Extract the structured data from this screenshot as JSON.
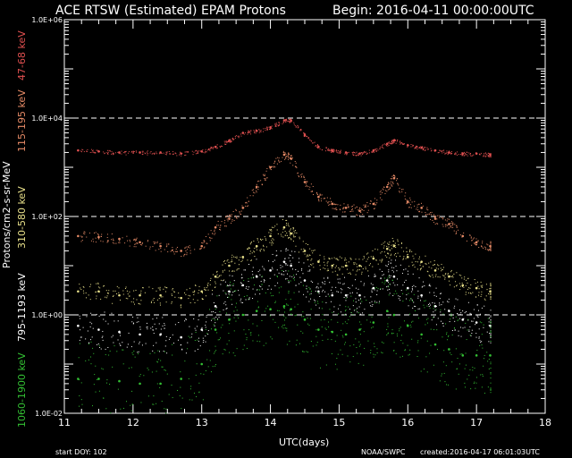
{
  "header": {
    "title": "ACE RTSW (Estimated) EPAM Protons",
    "begin": "Begin: 2016-04-11 00:00:00UTC"
  },
  "footer": {
    "start_doy": "start DOY:  102",
    "credit": "NOAA/SWPC",
    "created": "created:2016-04-17 06:01:03UTC"
  },
  "chart_data": {
    "type": "scatter",
    "title": "ACE RTSW (Estimated) EPAM Protons",
    "xlabel": "UTC(days)",
    "ylabel": "Protons/cm2-s-sr-MeV",
    "xlim": [
      11,
      18
    ],
    "ylim": [
      0.01,
      1000000
    ],
    "y_scale": "log",
    "x_ticks": [
      "11",
      "12",
      "13",
      "14",
      "15",
      "16",
      "17",
      "18"
    ],
    "y_ticks": [
      "1.0E+06",
      "1.0E+04",
      "1.0E+02",
      "1.0E+00",
      "1.0E-02"
    ],
    "y_tick_values": [
      1000000,
      10000,
      100,
      1,
      0.01
    ],
    "dashed_gridlines": [
      10000,
      100,
      1
    ],
    "background": "#000000",
    "series": [
      {
        "name": "47-68 keV",
        "color": "#e05050",
        "x": [
          11.2,
          11.5,
          11.8,
          12.1,
          12.4,
          12.7,
          13.0,
          13.2,
          13.4,
          13.6,
          13.8,
          14.0,
          14.2,
          14.3,
          14.5,
          14.7,
          14.9,
          15.1,
          15.3,
          15.5,
          15.7,
          15.8,
          16.0,
          16.2,
          16.4,
          16.6,
          16.8,
          17.0,
          17.2
        ],
        "y": [
          2200,
          2100,
          2000,
          2000,
          2000,
          1900,
          2100,
          2600,
          3500,
          5000,
          5500,
          6500,
          9000,
          9000,
          4500,
          2600,
          2200,
          2000,
          1900,
          2200,
          3000,
          3500,
          2800,
          2500,
          2200,
          2000,
          1900,
          1900,
          1800
        ]
      },
      {
        "name": "115-195 keV",
        "color": "#e58a66",
        "x": [
          11.2,
          11.5,
          11.8,
          12.1,
          12.4,
          12.7,
          13.0,
          13.2,
          13.4,
          13.6,
          13.8,
          14.0,
          14.2,
          14.3,
          14.5,
          14.7,
          14.9,
          15.1,
          15.3,
          15.5,
          15.7,
          15.8,
          16.0,
          16.2,
          16.4,
          16.6,
          16.8,
          17.0,
          17.2
        ],
        "y": [
          40,
          38,
          35,
          30,
          25,
          20,
          25,
          60,
          90,
          150,
          400,
          1000,
          1800,
          1500,
          500,
          250,
          180,
          150,
          130,
          180,
          400,
          600,
          200,
          150,
          90,
          70,
          40,
          30,
          25
        ]
      },
      {
        "name": "310-580 keV",
        "color": "#e8e08a",
        "x": [
          11.2,
          11.5,
          11.8,
          12.1,
          12.4,
          12.7,
          13.0,
          13.2,
          13.4,
          13.6,
          13.8,
          14.0,
          14.2,
          14.3,
          14.5,
          14.7,
          14.9,
          15.1,
          15.3,
          15.5,
          15.7,
          15.8,
          16.0,
          16.2,
          16.4,
          16.6,
          16.8,
          17.0,
          17.2
        ],
        "y": [
          3,
          3,
          2.5,
          2.5,
          2.5,
          2.2,
          3,
          6,
          10,
          15,
          25,
          40,
          60,
          45,
          20,
          12,
          10,
          10,
          10,
          14,
          22,
          25,
          15,
          12,
          8,
          6,
          4,
          3.5,
          3
        ]
      },
      {
        "name": "795-1193 keV",
        "color": "#ffffff",
        "x": [
          11.2,
          11.5,
          11.8,
          12.1,
          12.4,
          12.7,
          13.0,
          13.2,
          13.4,
          13.6,
          13.8,
          14.0,
          14.2,
          14.3,
          14.5,
          14.7,
          14.9,
          15.1,
          15.3,
          15.5,
          15.7,
          15.8,
          16.0,
          16.2,
          16.4,
          16.6,
          16.8,
          17.0,
          17.2
        ],
        "y": [
          0.6,
          0.5,
          0.45,
          0.4,
          0.4,
          0.35,
          0.5,
          1.5,
          3,
          4,
          6,
          8,
          12,
          10,
          5,
          3,
          2.5,
          2.5,
          2.5,
          3.5,
          5,
          6,
          3.5,
          2.5,
          1.5,
          1.2,
          0.8,
          0.7,
          0.6
        ]
      },
      {
        "name": "1060-1900 keV",
        "color": "#33c033",
        "x": [
          11.2,
          11.5,
          11.8,
          12.1,
          12.4,
          12.7,
          13.0,
          13.2,
          13.4,
          13.6,
          13.8,
          14.0,
          14.2,
          14.3,
          14.5,
          14.7,
          14.9,
          15.1,
          15.3,
          15.5,
          15.7,
          15.8,
          16.0,
          16.2,
          16.4,
          16.6,
          16.8,
          17.0,
          17.2
        ],
        "y": [
          0.05,
          0.05,
          0.045,
          0.04,
          0.04,
          0.05,
          0.1,
          0.5,
          0.8,
          1.0,
          1.2,
          1.3,
          1.5,
          1.3,
          0.8,
          0.5,
          0.45,
          0.4,
          0.5,
          0.7,
          1.2,
          1.0,
          0.6,
          0.4,
          0.25,
          0.2,
          0.15,
          0.15,
          0.15
        ]
      }
    ]
  }
}
